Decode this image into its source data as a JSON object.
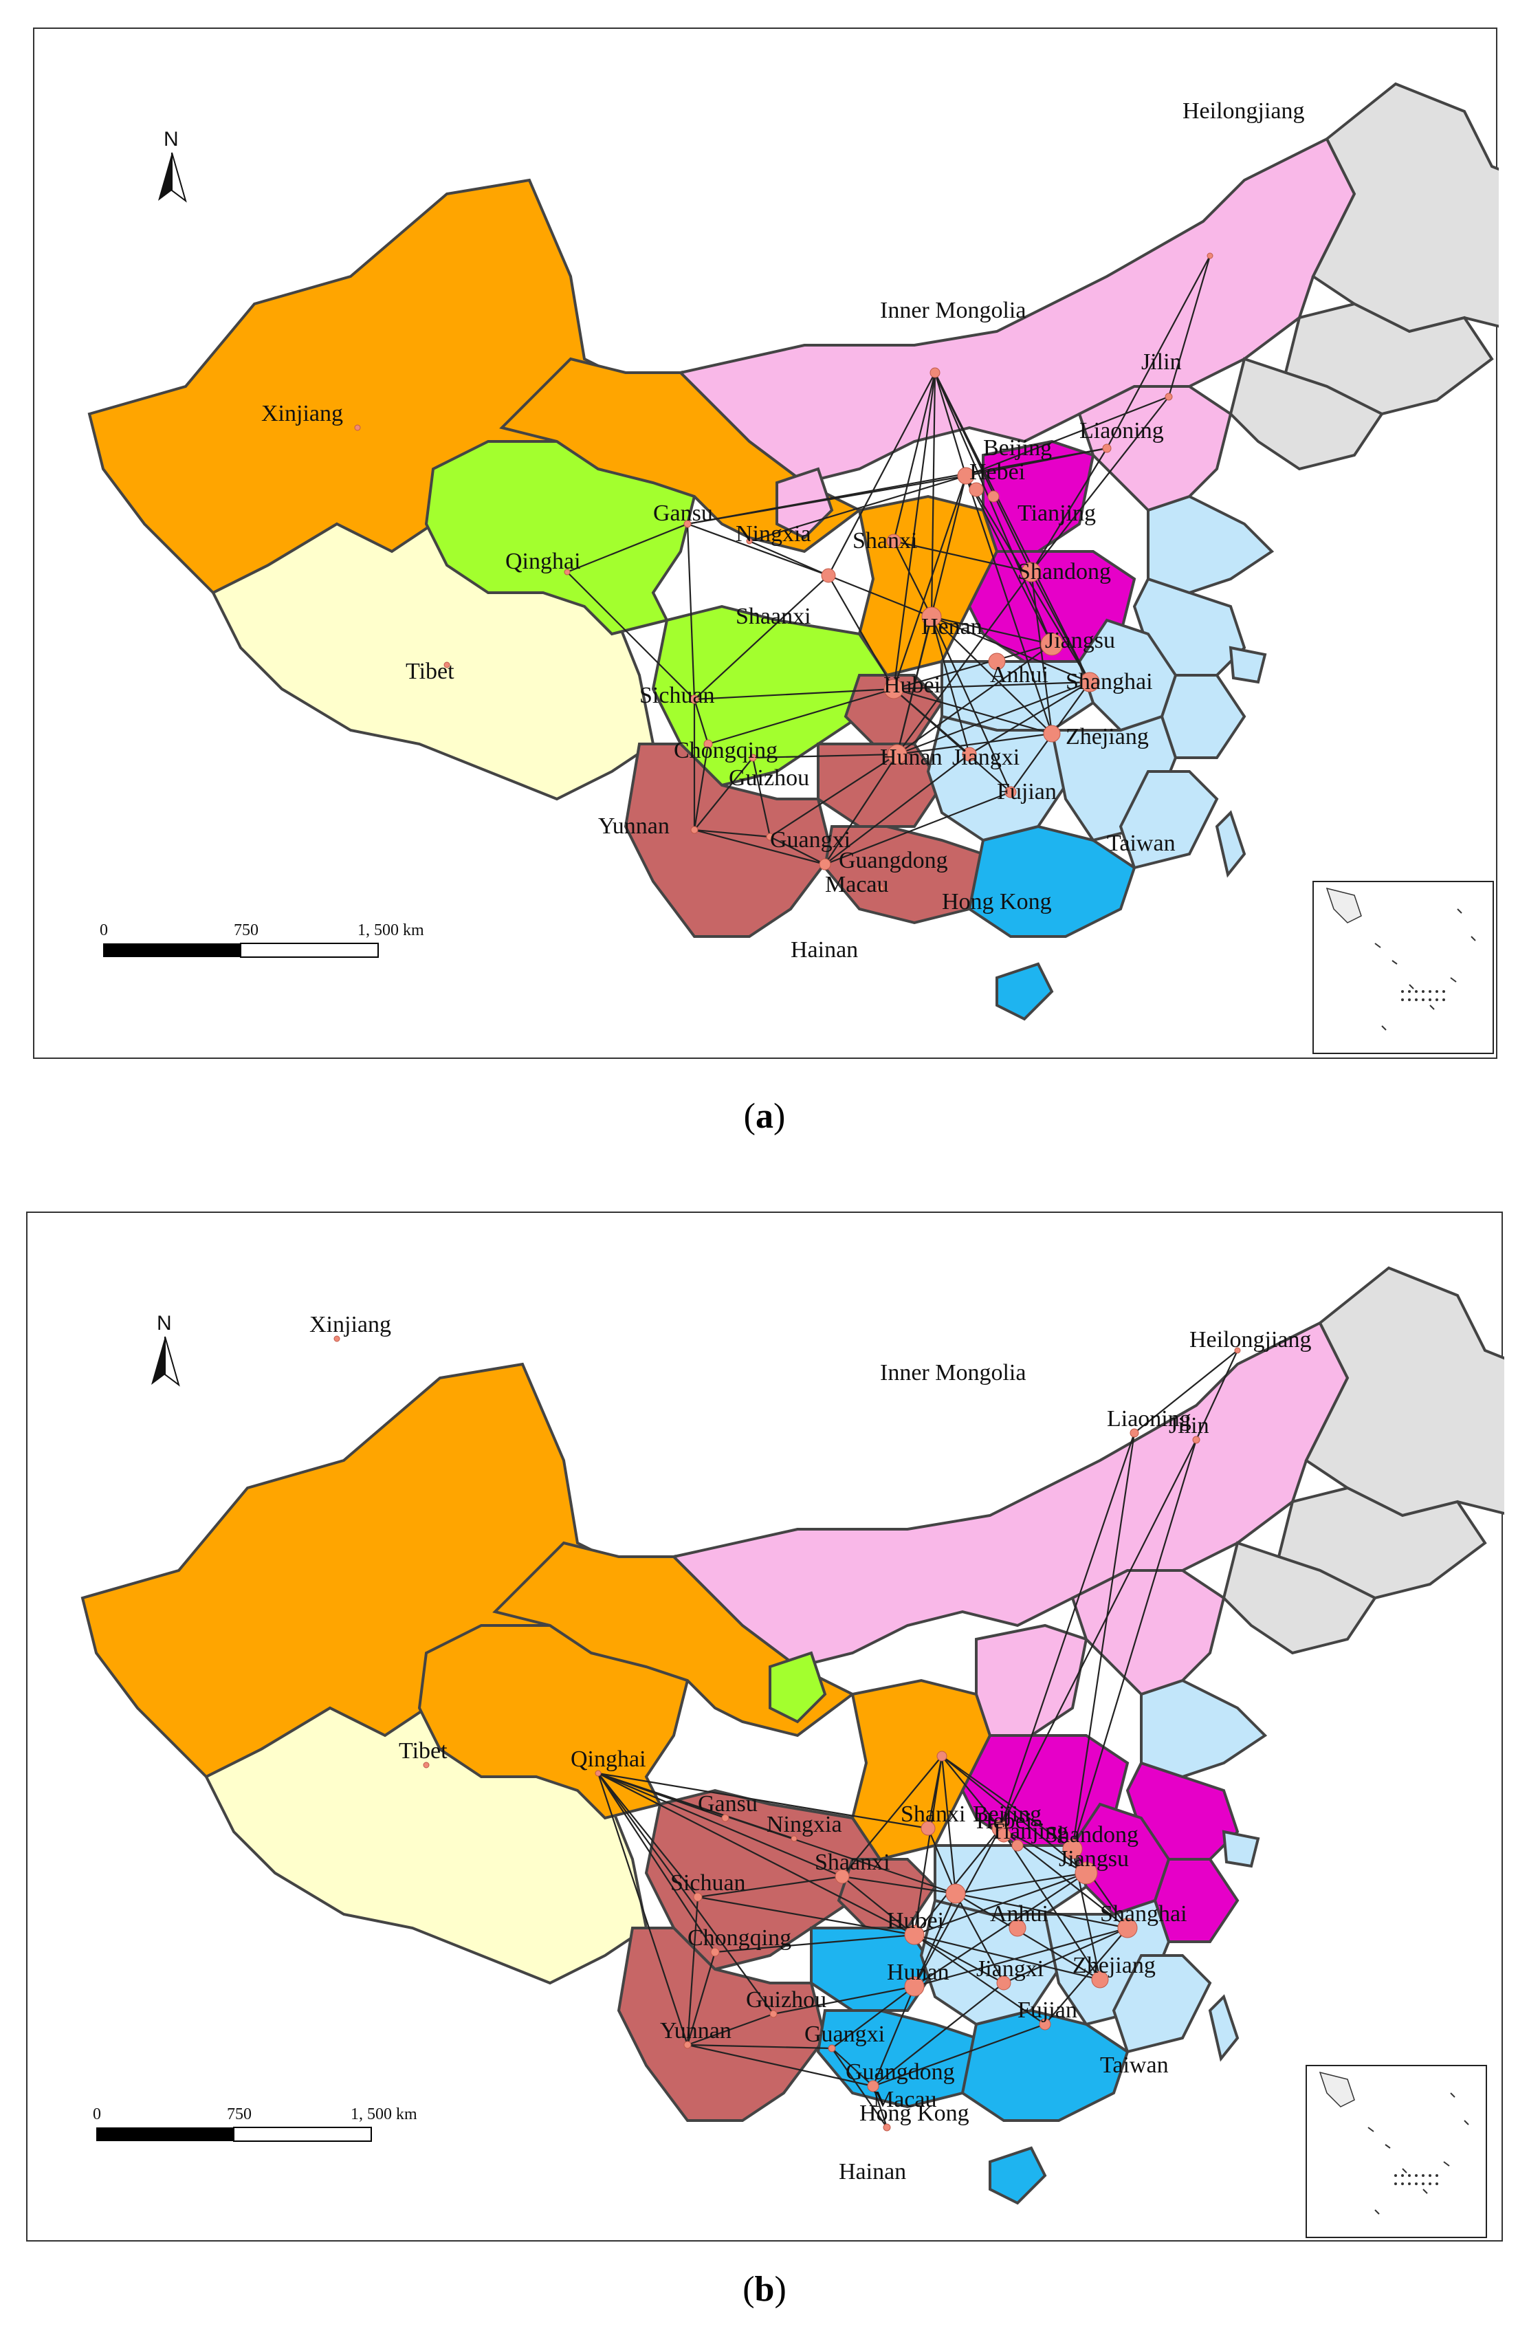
{
  "panels": [
    {
      "id": "a",
      "caption_letter": "a",
      "north_label": "N",
      "scale": {
        "ticks": [
          "0",
          "750",
          "1, 500 km"
        ]
      },
      "provinces": [
        {
          "name": "Xinjiang",
          "color": "#FFA500"
        },
        {
          "name": "Tibet",
          "color": "#FFFFCC"
        },
        {
          "name": "Qinghai",
          "color": "#A3FF2E"
        },
        {
          "name": "Gansu",
          "color": "#FFA500"
        },
        {
          "name": "Inner Mongolia",
          "color": "#F9B8E8"
        },
        {
          "name": "Heilongjiang",
          "color": "#E0E0E0"
        },
        {
          "name": "Jilin",
          "color": "#E0E0E0"
        },
        {
          "name": "Liaoning",
          "color": "#E0E0E0"
        },
        {
          "name": "Ningxia",
          "color": "#F9B8E8"
        },
        {
          "name": "Shaanxi",
          "color": "#FFA500"
        },
        {
          "name": "Shanxi",
          "color": "#E600C8"
        },
        {
          "name": "Henan",
          "color": "#E600C8"
        },
        {
          "name": "Sichuan",
          "color": "#A3FF2E"
        },
        {
          "name": "Chongqing",
          "color": "#C76666"
        },
        {
          "name": "Guizhou",
          "color": "#C76666"
        },
        {
          "name": "Yunnan",
          "color": "#C76666"
        },
        {
          "name": "Guangxi",
          "color": "#C76666"
        },
        {
          "name": "Guangdong",
          "color": "#1EB4F0"
        },
        {
          "name": "Hubei",
          "color": "#C2E6FA"
        },
        {
          "name": "Hunan",
          "color": "#C2E6FA"
        },
        {
          "name": "Jiangxi",
          "color": "#C2E6FA"
        },
        {
          "name": "Fujian",
          "color": "#C2E6FA"
        },
        {
          "name": "Zhejiang",
          "color": "#C2E6FA"
        },
        {
          "name": "Jiangsu",
          "color": "#C2E6FA"
        },
        {
          "name": "Hainan",
          "color": "#1EB4F0"
        }
      ],
      "labels": [
        "Heilongjiang",
        "Inner Mongolia",
        "Jilin",
        "Xinjiang",
        "Liaoning",
        "Beijing",
        "Hebei",
        "Tianjing",
        "Gansu",
        "Ningxia",
        "Shanxi",
        "Qinghai",
        "Shandong",
        "Shaanxi",
        "Henan",
        "Jiangsu",
        "Tibet",
        "Anhui",
        "Shanghai",
        "Sichuan",
        "Hubei",
        "Zhejiang",
        "Chongqing",
        "Hunan",
        "Jiangxi",
        "Guizhou",
        "Fujian",
        "Yunnan",
        "Guangxi",
        "Guangdong",
        "Taiwan",
        "Macau",
        "Hong Kong",
        "Hainan"
      ]
    },
    {
      "id": "b",
      "caption_letter": "b",
      "north_label": "N",
      "scale": {
        "ticks": [
          "0",
          "750",
          "1, 500 km"
        ]
      },
      "provinces": [
        {
          "name": "Xinjiang",
          "color": "#FFA500"
        },
        {
          "name": "Tibet",
          "color": "#FFFFCC"
        },
        {
          "name": "Qinghai",
          "color": "#FFA500"
        },
        {
          "name": "Gansu",
          "color": "#FFA500"
        },
        {
          "name": "Inner Mongolia",
          "color": "#F9B8E8"
        },
        {
          "name": "Heilongjiang",
          "color": "#E0E0E0"
        },
        {
          "name": "Jilin",
          "color": "#E0E0E0"
        },
        {
          "name": "Liaoning",
          "color": "#E0E0E0"
        },
        {
          "name": "Ningxia",
          "color": "#A3FF2E"
        },
        {
          "name": "Shaanxi",
          "color": "#FFA500"
        },
        {
          "name": "Shanxi",
          "color": "#F9B8E8"
        },
        {
          "name": "Henan",
          "color": "#E600C8"
        },
        {
          "name": "Sichuan",
          "color": "#C76666"
        },
        {
          "name": "Chongqing",
          "color": "#C76666"
        },
        {
          "name": "Guizhou",
          "color": "#1EB4F0"
        },
        {
          "name": "Yunnan",
          "color": "#C76666"
        },
        {
          "name": "Guangxi",
          "color": "#1EB4F0"
        },
        {
          "name": "Guangdong",
          "color": "#1EB4F0"
        },
        {
          "name": "Hubei",
          "color": "#C2E6FA"
        },
        {
          "name": "Hunan",
          "color": "#C2E6FA"
        },
        {
          "name": "Jiangxi",
          "color": "#C2E6FA"
        },
        {
          "name": "Fujian",
          "color": "#C2E6FA"
        },
        {
          "name": "Zhejiang",
          "color": "#E600C8"
        },
        {
          "name": "Jiangsu",
          "color": "#E600C8"
        },
        {
          "name": "Hainan",
          "color": "#1EB4F0"
        }
      ],
      "labels": [
        "Heilongjiang",
        "Inner Mongolia",
        "Jilin",
        "Xinjiang",
        "Liaoning",
        "Beijing",
        "Hebei",
        "Gansu",
        "Tianjing",
        "Ningxia",
        "Shanxi",
        "Shandong",
        "Qinghai",
        "Shaanxi",
        "Anhui",
        "Jiangsu",
        "Tibet",
        "Hubei",
        "Shanghai",
        "Sichuan",
        "Chongqing",
        "Hunan",
        "Jiangxi",
        "Zhejiang",
        "Guizhou",
        "Fujian",
        "Yunnan",
        "Taiwan",
        "Guangxi",
        "Guangdong",
        "Macau",
        "Hong Kong",
        "Hainan"
      ]
    }
  ]
}
